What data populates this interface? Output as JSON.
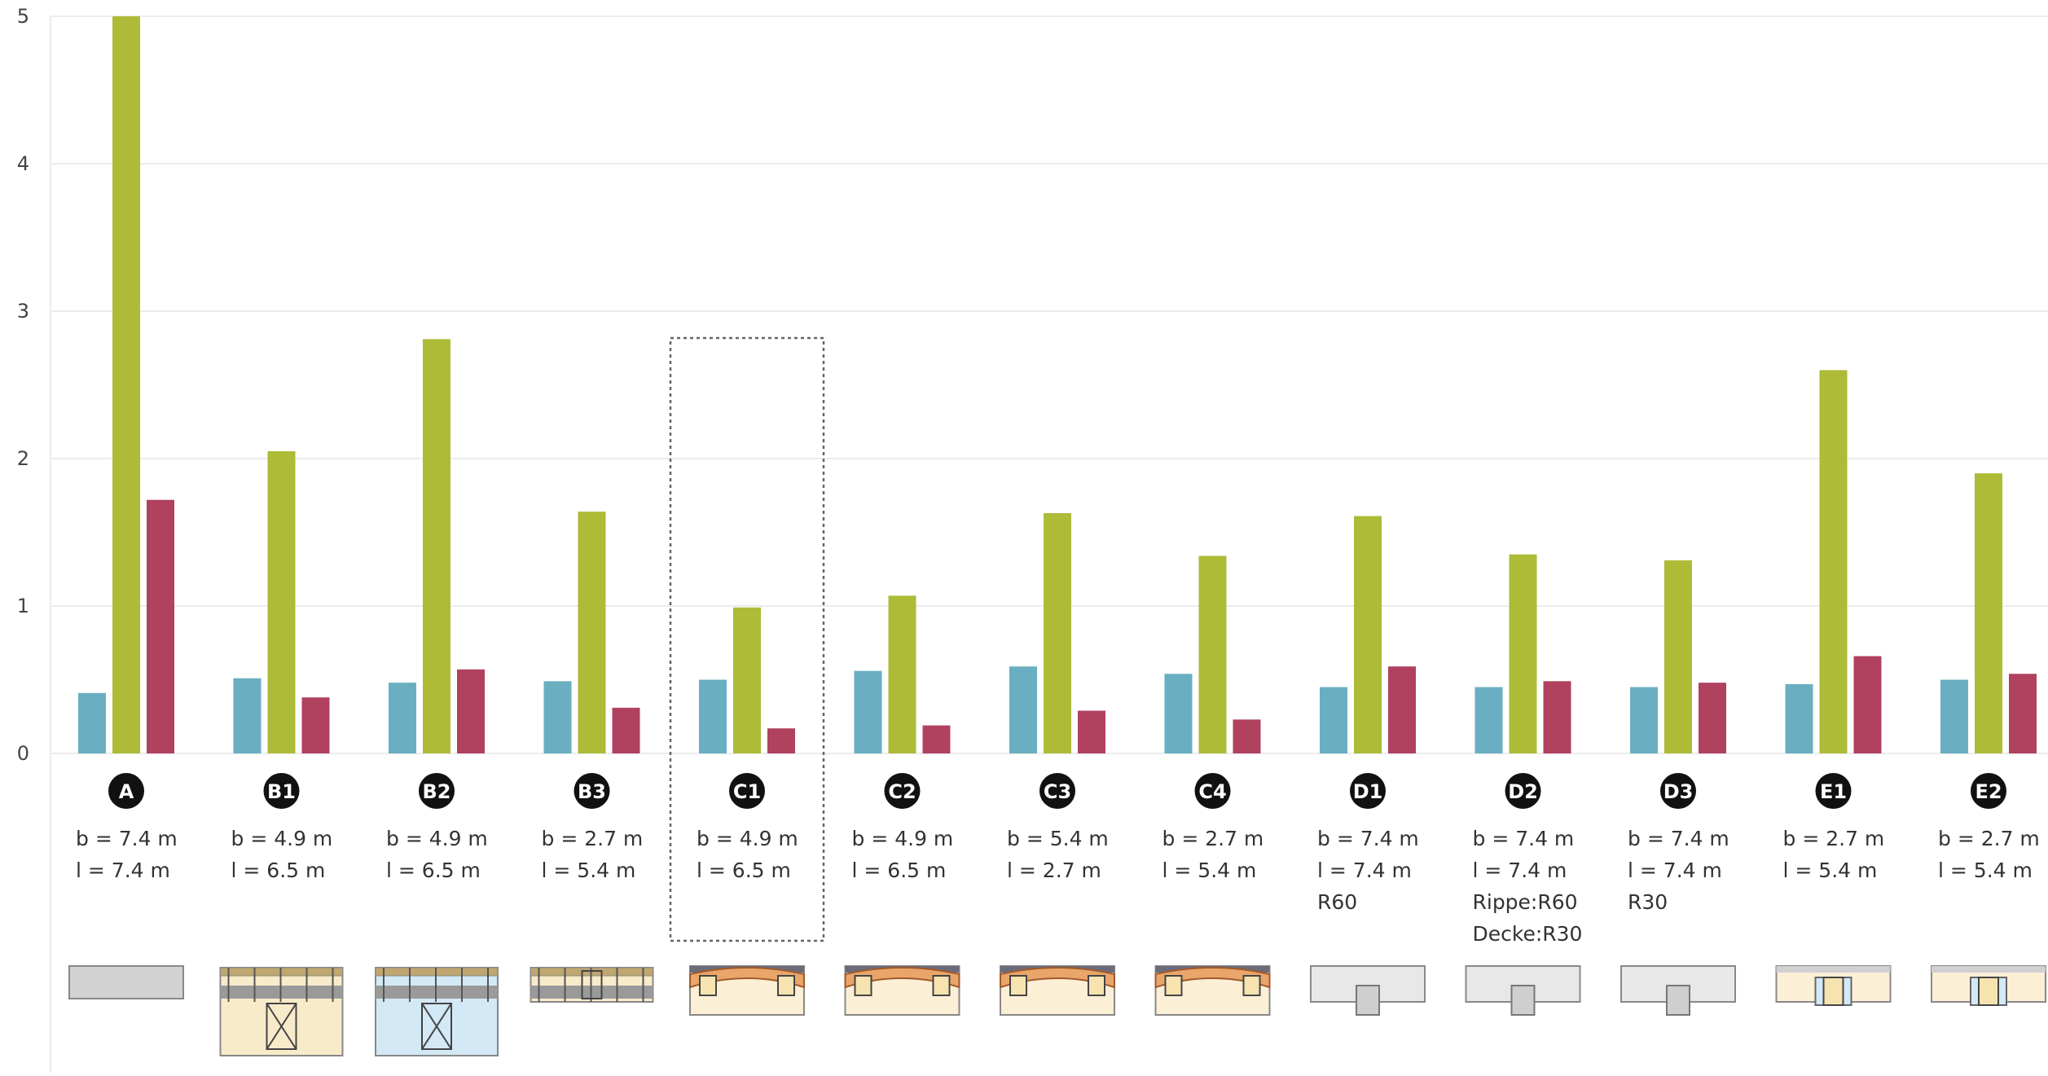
{
  "chart_data": {
    "type": "bar",
    "ylim": [
      0,
      5
    ],
    "yticks": [
      "0",
      "1",
      "2",
      "3",
      "4",
      "5"
    ],
    "categories": [
      "A",
      "B1",
      "B2",
      "B3",
      "C1",
      "C2",
      "C3",
      "C4",
      "D1",
      "D2",
      "D3",
      "E1",
      "E2"
    ],
    "series": [
      {
        "color": "#6aaec1",
        "values": [
          0.41,
          0.51,
          0.48,
          0.49,
          0.5,
          0.56,
          0.59,
          0.54,
          0.45,
          0.45,
          0.45,
          0.47,
          0.5
        ]
      },
      {
        "color": "#adbb37",
        "values": [
          5.0,
          2.05,
          2.81,
          1.64,
          0.99,
          1.07,
          1.63,
          1.34,
          1.61,
          1.35,
          1.31,
          2.6,
          1.9
        ]
      },
      {
        "color": "#b0415f",
        "values": [
          1.72,
          0.38,
          0.57,
          0.31,
          0.17,
          0.19,
          0.29,
          0.23,
          0.59,
          0.49,
          0.48,
          0.66,
          0.54
        ]
      }
    ],
    "annotations": [
      [
        "b = 7.4 m",
        "l = 7.4 m"
      ],
      [
        "b = 4.9 m",
        "l = 6.5 m"
      ],
      [
        "b = 4.9 m",
        "l = 6.5 m"
      ],
      [
        "b = 2.7 m",
        "l = 5.4 m"
      ],
      [
        "b = 4.9 m",
        "l = 6.5 m"
      ],
      [
        "b = 4.9 m",
        "l = 6.5 m"
      ],
      [
        "b = 5.4 m",
        "l = 2.7 m"
      ],
      [
        "b = 2.7 m",
        "l = 5.4 m"
      ],
      [
        "b = 7.4 m",
        "l = 7.4 m",
        "R60"
      ],
      [
        "b = 7.4 m",
        "l = 7.4 m",
        "Rippe:R60",
        "Decke:R30"
      ],
      [
        "b = 7.4 m",
        "l = 7.4 m",
        "R30"
      ],
      [
        "b = 2.7 m",
        "l = 5.4 m"
      ],
      [
        "b = 2.7 m",
        "l = 5.4 m"
      ]
    ],
    "highlighted": "C1",
    "thumbnails": [
      "slab",
      "frame-tall",
      "frame-blue",
      "frame-short",
      "arch",
      "arch",
      "arch",
      "arch",
      "tee",
      "tee",
      "tee",
      "joist",
      "joist"
    ],
    "grid": true,
    "legend": "none"
  }
}
